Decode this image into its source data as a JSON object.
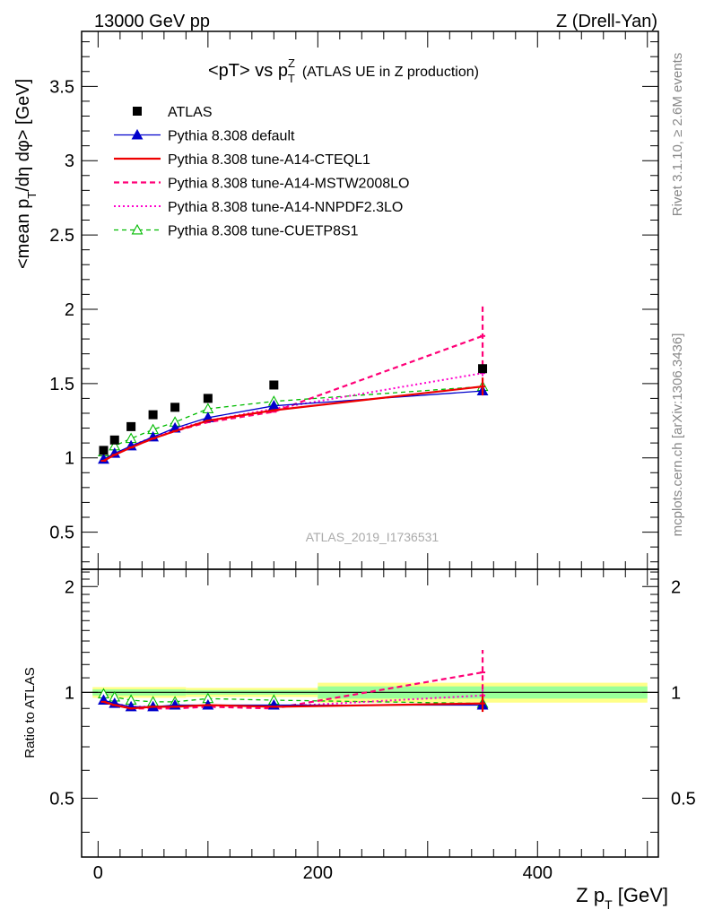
{
  "header": {
    "left": "13000 GeV pp",
    "right": "Z (Drell-Yan)"
  },
  "title": {
    "main": "<pT> vs p",
    "sup": "Z",
    "sub": "T",
    "note": "(ATLAS UE in Z production)"
  },
  "side": {
    "rivet": "Rivet 3.1.10, ≥ 2.6M events",
    "mcplots": "mcplots.cern.ch [arXiv:1306.3436]"
  },
  "watermark": "ATLAS_2019_I1736531",
  "colors": {
    "atlas": "#000000",
    "default": "#0000cc",
    "cteql1": "#ee0000",
    "mstw": "#ff0077",
    "nnpdf": "#ff00cc",
    "cuetp": "#00bb00",
    "band_inner": "#99ff99",
    "band_outer": "#ffff88"
  },
  "chart_data": [
    {
      "type": "line",
      "ylabel": "<mean p_T/dη dφ> [GeV]",
      "xlim": [
        -15,
        510
      ],
      "ylim": [
        0.25,
        3.87
      ],
      "yticks": [
        "0.5",
        "1",
        "1.5",
        "2",
        "2.5",
        "3",
        "3.5"
      ],
      "legend": [
        "ATLAS",
        "Pythia 8.308 default",
        "Pythia 8.308 tune-A14-CTEQL1",
        "Pythia 8.308 tune-A14-MSTW2008LO",
        "Pythia 8.308 tune-A14-NNPDF2.3LO",
        "Pythia 8.308 tune-CUETP8S1"
      ],
      "x": [
        5,
        15,
        30,
        50,
        70,
        100,
        160,
        350
      ],
      "atlas": [
        1.05,
        1.12,
        1.21,
        1.29,
        1.34,
        1.4,
        1.49,
        1.6
      ],
      "series": [
        {
          "key": "default",
          "values": [
            0.99,
            1.03,
            1.08,
            1.14,
            1.2,
            1.27,
            1.35,
            1.45
          ],
          "err350": 0.03
        },
        {
          "key": "cteql1",
          "values": [
            0.98,
            1.02,
            1.07,
            1.13,
            1.18,
            1.25,
            1.32,
            1.48
          ],
          "err350": 0.06
        },
        {
          "key": "mstw",
          "values": [
            0.98,
            1.02,
            1.07,
            1.13,
            1.18,
            1.24,
            1.31,
            1.82
          ],
          "err350": 0.2
        },
        {
          "key": "nnpdf",
          "values": [
            0.98,
            1.02,
            1.08,
            1.14,
            1.19,
            1.25,
            1.33,
            1.57
          ],
          "err350": 0.08
        },
        {
          "key": "cuetp",
          "values": [
            1.04,
            1.08,
            1.13,
            1.19,
            1.24,
            1.33,
            1.38,
            1.48
          ],
          "err350": 0.04
        }
      ]
    },
    {
      "type": "line",
      "xlabel": "Z p_T [GeV]",
      "ylabel": "Ratio to ATLAS",
      "ylim": [
        0.34,
        2.24
      ],
      "yticks": [
        "0.5",
        "1",
        "2"
      ],
      "xticks": [
        "0",
        "200",
        "400"
      ],
      "x": [
        5,
        15,
        30,
        50,
        70,
        100,
        160,
        350
      ],
      "series": [
        {
          "key": "default",
          "values": [
            0.95,
            0.93,
            0.91,
            0.91,
            0.92,
            0.92,
            0.92,
            0.92
          ],
          "err350": 0.03
        },
        {
          "key": "cteql1",
          "values": [
            0.94,
            0.92,
            0.9,
            0.91,
            0.91,
            0.92,
            0.91,
            0.93
          ],
          "err350": 0.05
        },
        {
          "key": "mstw",
          "values": [
            0.94,
            0.92,
            0.9,
            0.9,
            0.9,
            0.91,
            0.9,
            1.14
          ],
          "err350": 0.18
        },
        {
          "key": "nnpdf",
          "values": [
            0.94,
            0.93,
            0.91,
            0.91,
            0.91,
            0.92,
            0.91,
            0.98
          ],
          "err350": 0.06
        },
        {
          "key": "cuetp",
          "values": [
            0.99,
            0.97,
            0.95,
            0.94,
            0.94,
            0.96,
            0.95,
            0.93
          ],
          "err350": 0.04
        }
      ],
      "band": [
        {
          "x0": -5,
          "x1": 80,
          "inner": 0.02,
          "outer": 0.035
        },
        {
          "x0": 80,
          "x1": 200,
          "inner": 0.015,
          "outer": 0.03
        },
        {
          "x0": 200,
          "x1": 500,
          "inner": 0.04,
          "outer": 0.065
        }
      ]
    }
  ]
}
